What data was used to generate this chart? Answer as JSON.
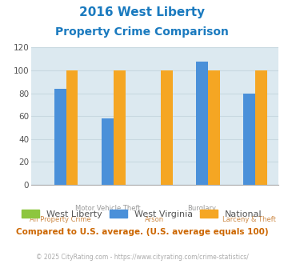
{
  "title_line1": "2016 West Liberty",
  "title_line2": "Property Crime Comparison",
  "title_color": "#1a7abf",
  "categories": [
    "All Property Crime",
    "Motor Vehicle Theft",
    "Arson",
    "Burglary",
    "Larceny & Theft"
  ],
  "x_label_top_row": [
    "",
    "Motor Vehicle Theft",
    "",
    "Burglary",
    ""
  ],
  "x_label_bottom_row": [
    "All Property Crime",
    "",
    "Arson",
    "",
    "Larceny & Theft"
  ],
  "series": {
    "West Liberty": {
      "color": "#8dc63f",
      "values": [
        0,
        0,
        0,
        0,
        0
      ]
    },
    "West Virginia": {
      "color": "#4a90d9",
      "values": [
        84,
        58,
        0,
        108,
        80
      ]
    },
    "National": {
      "color": "#f5a623",
      "values": [
        100,
        100,
        100,
        100,
        100
      ]
    }
  },
  "ylim": [
    0,
    120
  ],
  "yticks": [
    0,
    20,
    40,
    60,
    80,
    100,
    120
  ],
  "grid_color": "#c8d8e0",
  "plot_area_color": "#dce9f0",
  "footer_text": "© 2025 CityRating.com - https://www.cityrating.com/crime-statistics/",
  "comparison_text": "Compared to U.S. average. (U.S. average equals 100)",
  "comparison_color": "#cc6600",
  "footer_color": "#aaaaaa",
  "x_label_top_color": "#999999",
  "x_label_bottom_color": "#cc8844"
}
